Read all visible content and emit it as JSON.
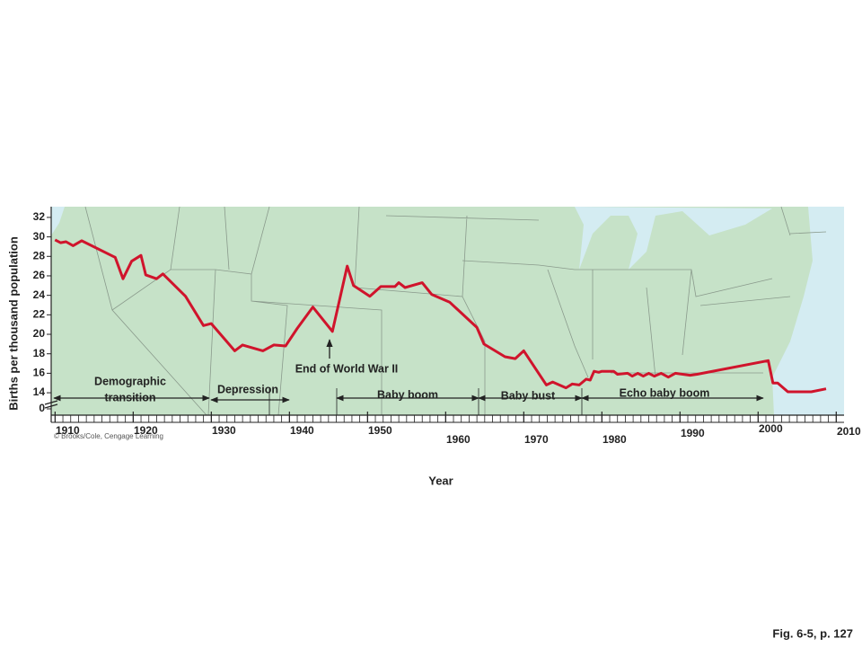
{
  "chart_data": {
    "type": "line",
    "y_label": "Births per thousand population",
    "x_label": "Year",
    "credit": "© Brooks/Cole, Cengage Learning",
    "caption": "Fig. 6-5, p. 127",
    "xlim": [
      1909.5,
      2011
    ],
    "xticks": [
      1910,
      1920,
      1930,
      1940,
      1950,
      1960,
      1970,
      1980,
      1990,
      2000,
      2010
    ],
    "ylim": [
      11.7,
      33.1
    ],
    "yticks": [
      0,
      14,
      16,
      18,
      20,
      22,
      24,
      26,
      28,
      30,
      32
    ],
    "axis_break": true,
    "x": [
      1910,
      1910.7,
      1911.4,
      1912.3,
      1913.4,
      1917.7,
      1918.7,
      1919.8,
      1921,
      1921.6,
      1923,
      1923.8,
      1926.7,
      1929,
      1930,
      1933,
      1934,
      1936.6,
      1938,
      1939.5,
      1941,
      1943,
      1945.5,
      1947.4,
      1948.2,
      1950.3,
      1951.7,
      1953.5,
      1954,
      1954.8,
      1957,
      1958.2,
      1960.5,
      1964,
      1964.9,
      1967.6,
      1968.9,
      1970,
      1972.9,
      1973.7,
      1975.4,
      1976.2,
      1977.1,
      1978,
      1978.5,
      1979,
      1979.6,
      1980,
      1981.5,
      1982,
      1983.3,
      1983.9,
      1984.6,
      1985.3,
      1986,
      1986.7,
      1987.6,
      1988.5,
      1989.4,
      1991.3,
      1992.2,
      2001.3,
      2001.9,
      2002.5,
      2003.8,
      2006.8,
      2008.7
    ],
    "series": [
      {
        "name": "Birth rate",
        "color": "#d0142c",
        "values": [
          29.7,
          29.4,
          29.5,
          29.1,
          29.6,
          27.9,
          25.7,
          27.5,
          28.1,
          26.1,
          25.7,
          26.2,
          23.9,
          20.9,
          21.1,
          18.3,
          18.9,
          18.3,
          18.9,
          18.8,
          20.6,
          22.8,
          20.3,
          27,
          25,
          23.9,
          24.9,
          24.9,
          25.3,
          24.8,
          25.3,
          24.1,
          23.3,
          20.7,
          19,
          17.7,
          17.5,
          18.3,
          14.8,
          15.1,
          14.5,
          14.9,
          14.8,
          15.4,
          15.3,
          16.2,
          16.1,
          16.2,
          16.2,
          15.9,
          16,
          15.7,
          16,
          15.7,
          16,
          15.7,
          16,
          15.6,
          16,
          15.8,
          15.9,
          17.3,
          15,
          15,
          14.1,
          14.1,
          14.4
        ]
      }
    ],
    "annotations": [
      "End of World War II",
      "Demographic",
      "transition",
      "Depression",
      "Baby boom",
      "Baby bust",
      "Echo baby boom"
    ]
  }
}
